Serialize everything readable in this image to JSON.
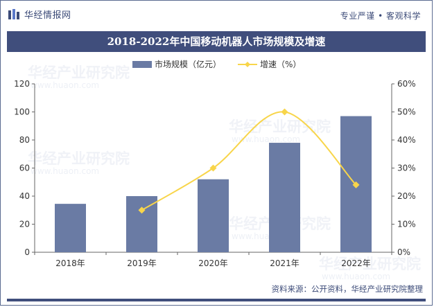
{
  "header": {
    "logo_text": "华经情报网",
    "slogan": "专业严谨 • 客观科学"
  },
  "watermark": {
    "text": "华经产业研究院",
    "url": "www.huaon.com"
  },
  "chart_data": {
    "type": "bar+line",
    "title": "2018-2022年中国移动机器人市场规模及增速",
    "categories": [
      "2018年",
      "2019年",
      "2020年",
      "2021年",
      "2022年"
    ],
    "series": [
      {
        "name": "市场规模（亿元）",
        "type": "bar",
        "axis": "left",
        "values": [
          34.5,
          40,
          52,
          78,
          97
        ]
      },
      {
        "name": "增速（%）",
        "type": "line",
        "axis": "right",
        "values": [
          null,
          15,
          30,
          50,
          24
        ]
      }
    ],
    "left_axis": {
      "min": 0,
      "max": 120,
      "ticks": [
        "0",
        "20",
        "40",
        "60",
        "80",
        "100",
        "120"
      ]
    },
    "right_axis": {
      "min": 0,
      "max": 60,
      "ticks": [
        "0%",
        "10%",
        "20%",
        "30%",
        "40%",
        "50%",
        "60%"
      ]
    },
    "legend_position": "top-center",
    "grid": false,
    "colors": {
      "bar": "#6a7ba4",
      "line": "#f8d54a",
      "accent": "#404e7c"
    }
  },
  "footer": {
    "source": "资料来源：公开资料，华经产业研究院整理"
  }
}
